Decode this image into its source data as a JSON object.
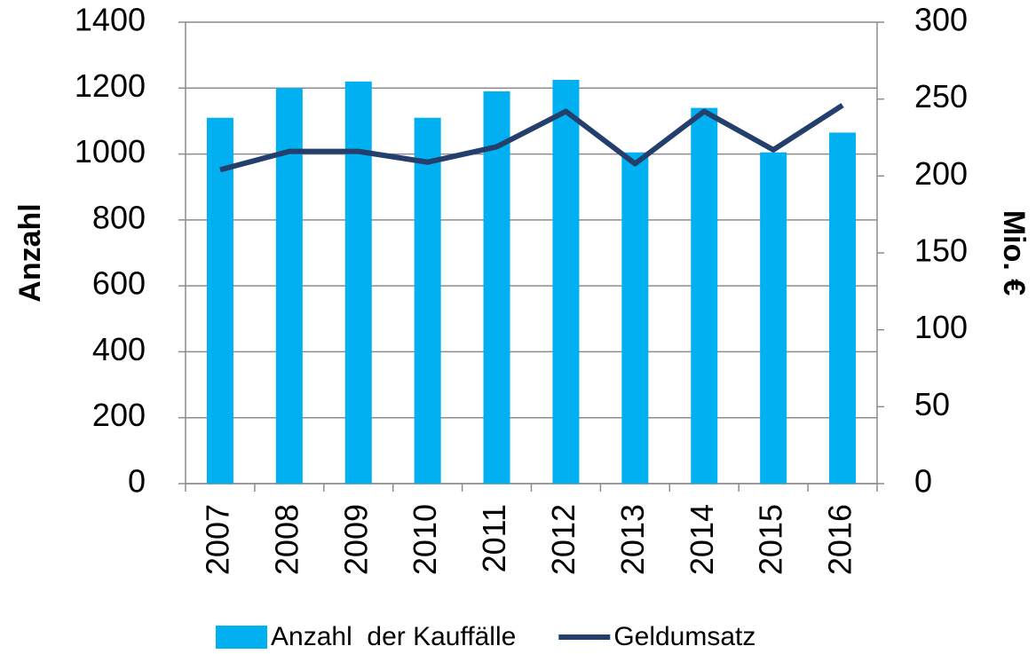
{
  "chart_data": {
    "type": "bar",
    "ylabel": "Anzahl",
    "y2label": "Mio. €",
    "categories": [
      "2007",
      "2008",
      "2009",
      "2010",
      "2011",
      "2012",
      "2013",
      "2014",
      "2015",
      "2016"
    ],
    "series": [
      {
        "name": "Anzahl  der Kauffälle",
        "type": "bar",
        "color": "#00b0f0",
        "values": [
          1110,
          1200,
          1220,
          1110,
          1190,
          1225,
          1005,
          1140,
          1005,
          1065
        ]
      },
      {
        "name": "Geldumsatz",
        "type": "line",
        "axis": "y2",
        "color": "#243f6b",
        "values": [
          204,
          216,
          216,
          209,
          219,
          242,
          208,
          242,
          217,
          246
        ]
      }
    ],
    "ylim": [
      0,
      1400
    ],
    "yticks": [
      0,
      200,
      400,
      600,
      800,
      1000,
      1200,
      1400
    ],
    "y2lim": [
      0,
      300
    ],
    "y2ticks": [
      0,
      50,
      100,
      150,
      200,
      250,
      300
    ],
    "grid": true
  }
}
